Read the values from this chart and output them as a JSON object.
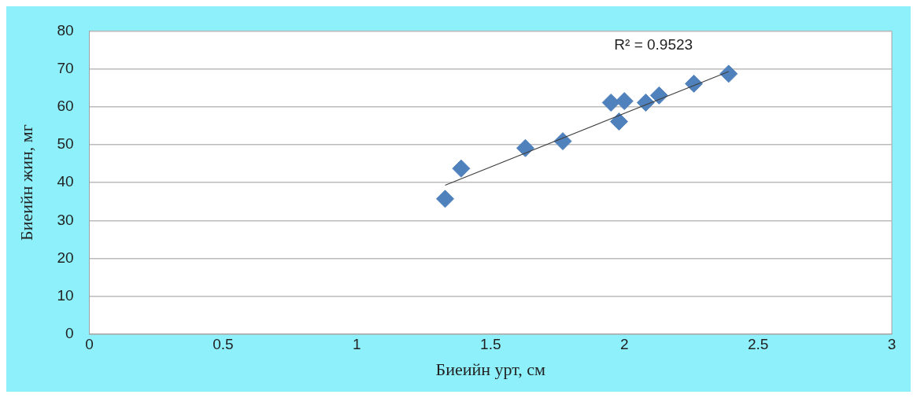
{
  "chart_data": {
    "type": "scatter",
    "xlabel": "Биеийн урт, см",
    "ylabel": "Биеийн жин, мг",
    "xlim": [
      0,
      3
    ],
    "xticks": [
      0,
      0.5,
      1,
      1.5,
      2,
      2.5,
      3
    ],
    "ylim": [
      0,
      80
    ],
    "yticks": [
      0,
      10,
      20,
      30,
      40,
      50,
      60,
      70,
      80
    ],
    "grid": "y",
    "legend": false,
    "series": [
      {
        "marker": "diamond",
        "color": "#4f81bd",
        "x": [
          1.33,
          1.39,
          1.63,
          1.77,
          1.95,
          1.98,
          2.0,
          2.08,
          2.13,
          2.26,
          2.39
        ],
        "values": [
          35.7,
          43.7,
          49.1,
          50.9,
          61.1,
          56.1,
          61.5,
          61.1,
          63.0,
          66.1,
          68.7
        ]
      },
      {
        "type": "line",
        "marker": "none",
        "color": "#404040",
        "x": [
          1.33,
          2.39
        ],
        "values": [
          39.3,
          69.3
        ]
      }
    ],
    "annotations": [
      "R² = 0.9523"
    ]
  }
}
